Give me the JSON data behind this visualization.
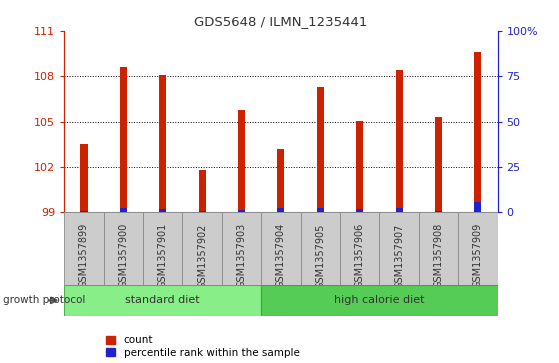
{
  "title": "GDS5648 / ILMN_1235441",
  "samples": [
    "GSM1357899",
    "GSM1357900",
    "GSM1357901",
    "GSM1357902",
    "GSM1357903",
    "GSM1357904",
    "GSM1357905",
    "GSM1357906",
    "GSM1357907",
    "GSM1357908",
    "GSM1357909"
  ],
  "count_values": [
    103.5,
    108.6,
    108.05,
    101.8,
    105.75,
    103.2,
    107.3,
    105.05,
    108.4,
    105.3,
    109.6
  ],
  "percentile_values": [
    0.5,
    2.5,
    2.0,
    1.0,
    1.5,
    2.2,
    2.5,
    2.0,
    2.5,
    1.0,
    5.5
  ],
  "y_min": 99,
  "y_max": 111,
  "y_ticks": [
    99,
    102,
    105,
    108,
    111
  ],
  "y2_ticks": [
    0,
    25,
    50,
    75,
    100
  ],
  "y2_labels": [
    "0",
    "25",
    "50",
    "75",
    "100%"
  ],
  "bar_color": "#cc2200",
  "percentile_color": "#2222cc",
  "standard_diet_indices": [
    0,
    1,
    2,
    3,
    4
  ],
  "high_calorie_indices": [
    5,
    6,
    7,
    8,
    9,
    10
  ],
  "group_label_std": "standard diet",
  "group_label_hc": "high calorie diet",
  "group_color_std": "#88ee88",
  "group_color_hc": "#55cc55",
  "group_protocol_label": "growth protocol",
  "legend_count_label": "count",
  "legend_percentile_label": "percentile rank within the sample",
  "bar_width": 0.18,
  "axis_left_color": "#cc2200",
  "axis_right_color": "#2222cc",
  "cell_bg": "#cccccc",
  "cell_border": "#888888"
}
